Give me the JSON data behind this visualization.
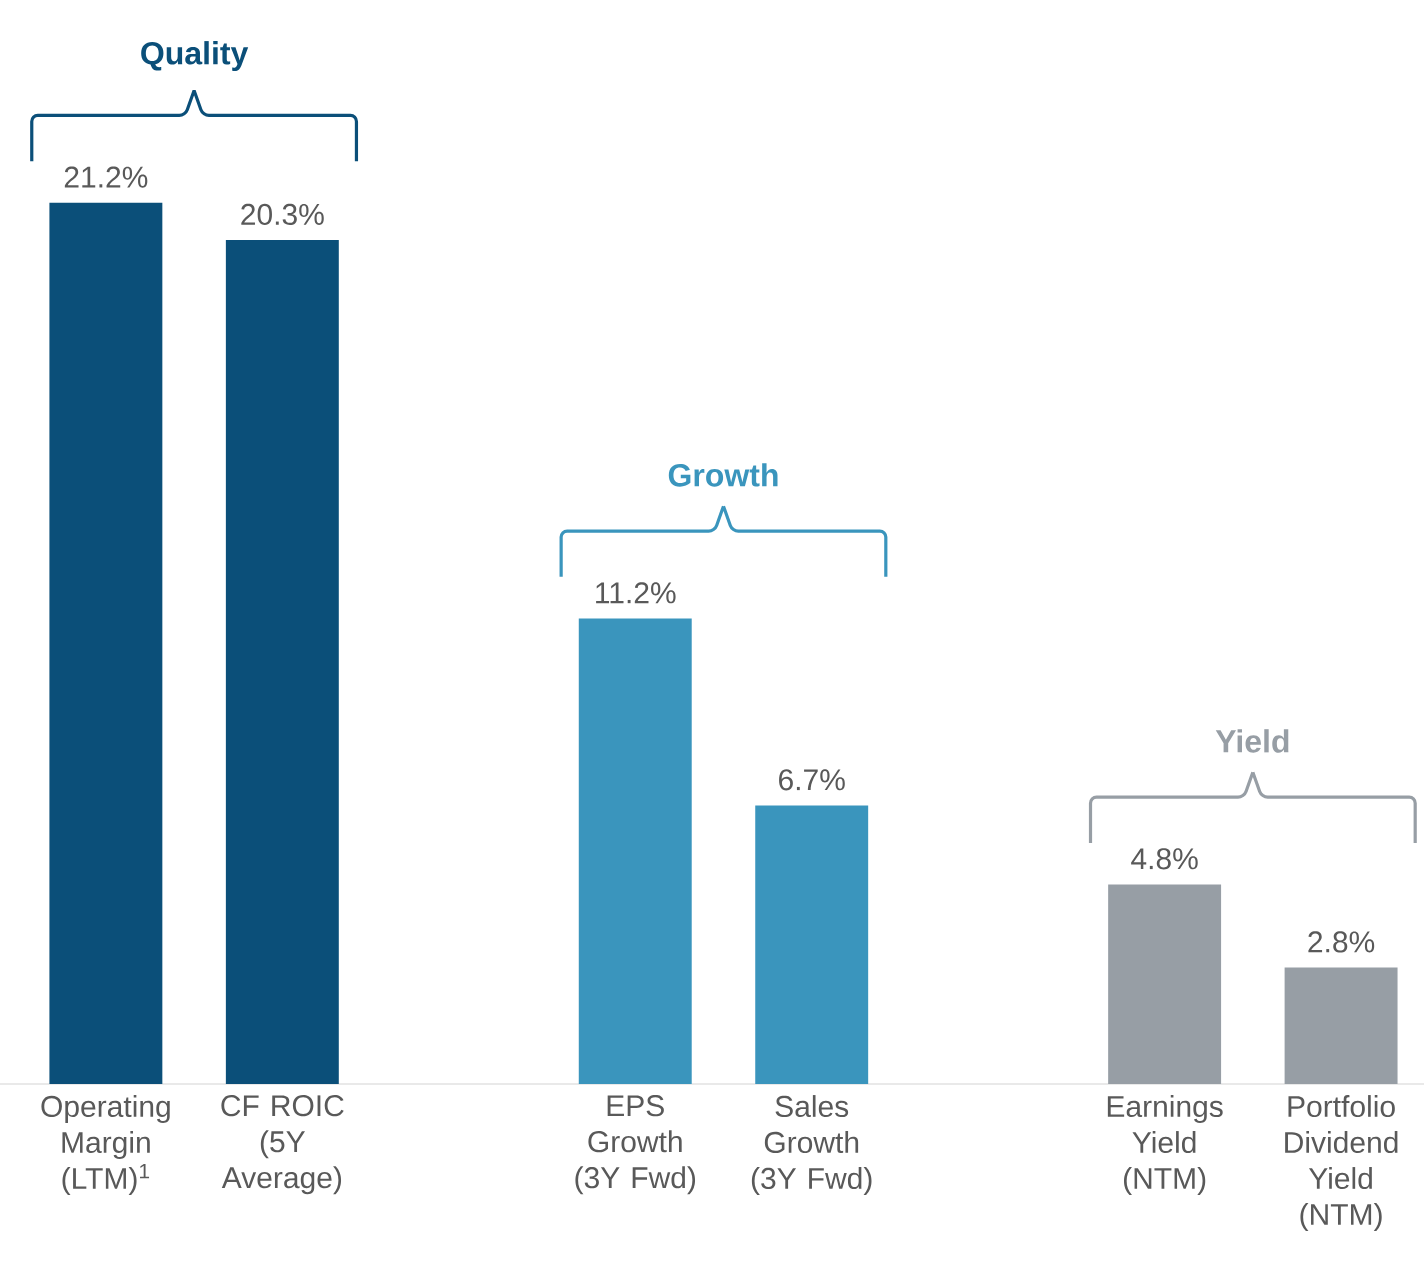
{
  "chart_data": {
    "type": "bar",
    "categories": [
      "Operating Margin (LTM)$^{1}$",
      "CF ROIC (5Y Average)",
      "EPS Growth (3Y Fwd)",
      "Sales Growth (3Y Fwd)",
      "Earnings Yield (NTM)",
      "Portfolio Dividend Yield (NTM)"
    ],
    "values": [
      21.2,
      20.3,
      11.2,
      6.7,
      4.8,
      2.8
    ],
    "value_labels": [
      "21.2%",
      "20.3%",
      "11.2%",
      "6.7%",
      "4.8%",
      "2.8%"
    ],
    "colors": [
      "#0b4f79",
      "#0b4f79",
      "#3a95bd",
      "#3a95bd",
      "#979ea5",
      "#979ea5"
    ],
    "annotations": [
      "Quality",
      "Growth",
      "Yield"
    ]
  }
}
